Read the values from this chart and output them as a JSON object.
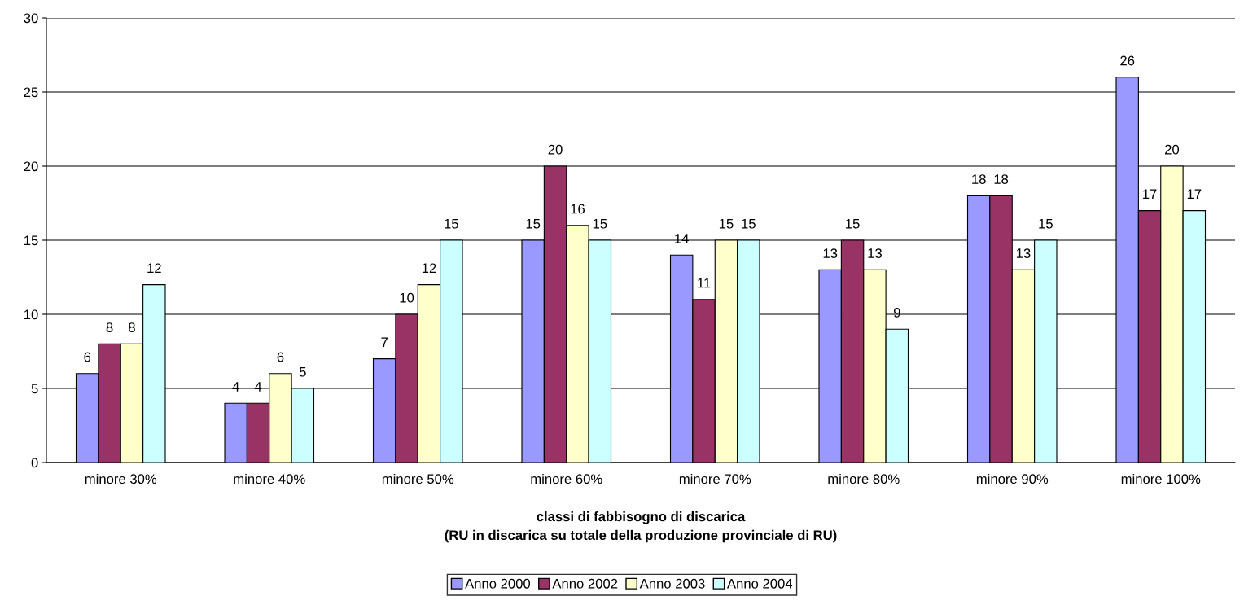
{
  "chart_data": {
    "type": "bar",
    "xlabel": "classi di fabbisogno di discarica\n(RU in discarica su totale della produzione provinciale di RU)",
    "categories": [
      "minore 30%",
      "minore 40%",
      "minore 50%",
      "minore 60%",
      "minore 70%",
      "minore 80%",
      "minore 90%",
      "minore 100%"
    ],
    "series": [
      {
        "name": "Anno 2000",
        "color": "#9999ff",
        "values": [
          6,
          4,
          7,
          15,
          14,
          13,
          18,
          26
        ]
      },
      {
        "name": "Anno 2002",
        "color": "#993366",
        "values": [
          8,
          4,
          10,
          20,
          11,
          15,
          18,
          17
        ]
      },
      {
        "name": "Anno 2003",
        "color": "#ffffcc",
        "values": [
          8,
          6,
          12,
          16,
          15,
          13,
          13,
          20
        ]
      },
      {
        "name": "Anno 2004",
        "color": "#ccffff",
        "values": [
          12,
          5,
          15,
          15,
          15,
          9,
          15,
          17
        ]
      }
    ],
    "ylim": [
      0,
      30
    ],
    "yticks": [
      0,
      5,
      10,
      15,
      20,
      25,
      30
    ],
    "grid": "y",
    "legend": "bottom",
    "data_labels": true
  }
}
